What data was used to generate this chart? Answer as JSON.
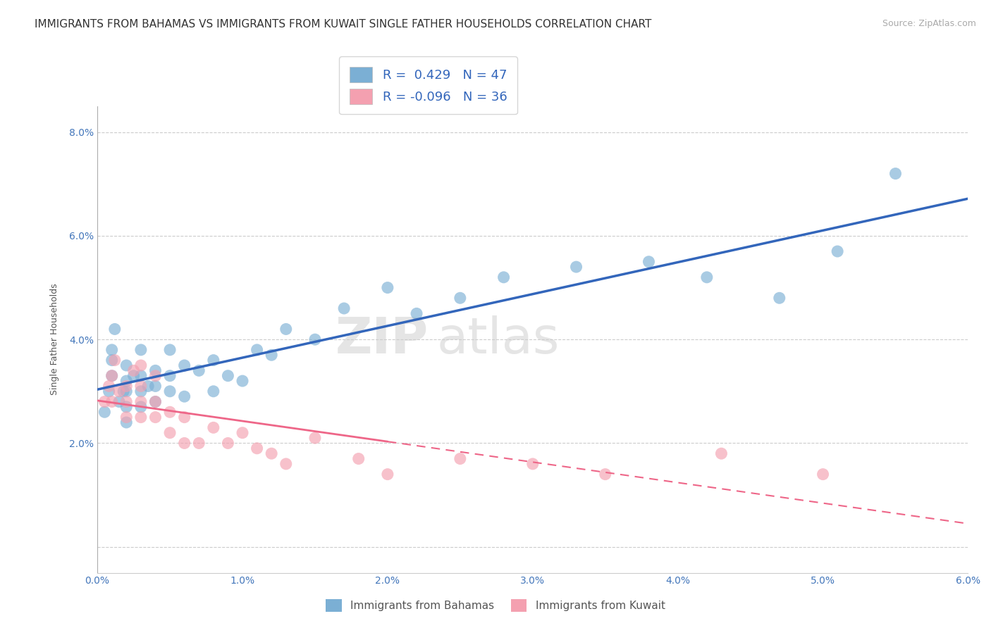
{
  "title": "IMMIGRANTS FROM BAHAMAS VS IMMIGRANTS FROM KUWAIT SINGLE FATHER HOUSEHOLDS CORRELATION CHART",
  "source": "Source: ZipAtlas.com",
  "ylabel": "Single Father Households",
  "xlabel": "",
  "legend_label1": "Immigrants from Bahamas",
  "legend_label2": "Immigrants from Kuwait",
  "r1": 0.429,
  "n1": 47,
  "r2": -0.096,
  "n2": 36,
  "color1": "#7BAFD4",
  "color2": "#F4A0B0",
  "line1_color": "#3366BB",
  "line2_color": "#EE6688",
  "xlim": [
    0.0,
    0.06
  ],
  "ylim": [
    -0.005,
    0.085
  ],
  "xticks": [
    0.0,
    0.01,
    0.02,
    0.03,
    0.04,
    0.05,
    0.06
  ],
  "yticks": [
    0.0,
    0.02,
    0.04,
    0.06,
    0.08
  ],
  "xtick_labels": [
    "0.0%",
    "1.0%",
    "2.0%",
    "3.0%",
    "4.0%",
    "5.0%",
    "6.0%"
  ],
  "ytick_labels": [
    "",
    "2.0%",
    "4.0%",
    "6.0%",
    "8.0%"
  ],
  "background_color": "#FFFFFF",
  "grid_color": "#CCCCCC",
  "watermark_zip": "ZIP",
  "watermark_atlas": "atlas",
  "bahamas_x": [
    0.0005,
    0.0008,
    0.001,
    0.001,
    0.001,
    0.0012,
    0.0015,
    0.0018,
    0.002,
    0.002,
    0.002,
    0.002,
    0.002,
    0.0025,
    0.003,
    0.003,
    0.003,
    0.003,
    0.0035,
    0.004,
    0.004,
    0.004,
    0.005,
    0.005,
    0.005,
    0.006,
    0.006,
    0.007,
    0.008,
    0.008,
    0.009,
    0.01,
    0.011,
    0.012,
    0.013,
    0.015,
    0.017,
    0.02,
    0.022,
    0.025,
    0.028,
    0.033,
    0.038,
    0.042,
    0.047,
    0.051,
    0.055
  ],
  "bahamas_y": [
    0.026,
    0.03,
    0.033,
    0.036,
    0.038,
    0.042,
    0.028,
    0.03,
    0.024,
    0.027,
    0.03,
    0.032,
    0.035,
    0.033,
    0.027,
    0.03,
    0.033,
    0.038,
    0.031,
    0.028,
    0.031,
    0.034,
    0.03,
    0.033,
    0.038,
    0.029,
    0.035,
    0.034,
    0.03,
    0.036,
    0.033,
    0.032,
    0.038,
    0.037,
    0.042,
    0.04,
    0.046,
    0.05,
    0.045,
    0.048,
    0.052,
    0.054,
    0.055,
    0.052,
    0.048,
    0.057,
    0.072
  ],
  "kuwait_x": [
    0.0005,
    0.0008,
    0.001,
    0.001,
    0.0012,
    0.0015,
    0.002,
    0.002,
    0.002,
    0.0025,
    0.003,
    0.003,
    0.003,
    0.003,
    0.004,
    0.004,
    0.004,
    0.005,
    0.005,
    0.006,
    0.006,
    0.007,
    0.008,
    0.009,
    0.01,
    0.011,
    0.012,
    0.013,
    0.015,
    0.018,
    0.02,
    0.025,
    0.03,
    0.035,
    0.043,
    0.05
  ],
  "kuwait_y": [
    0.028,
    0.031,
    0.028,
    0.033,
    0.036,
    0.03,
    0.025,
    0.028,
    0.031,
    0.034,
    0.025,
    0.028,
    0.031,
    0.035,
    0.025,
    0.028,
    0.033,
    0.022,
    0.026,
    0.02,
    0.025,
    0.02,
    0.023,
    0.02,
    0.022,
    0.019,
    0.018,
    0.016,
    0.021,
    0.017,
    0.014,
    0.017,
    0.016,
    0.014,
    0.018,
    0.014
  ],
  "title_fontsize": 11,
  "source_fontsize": 9,
  "axis_fontsize": 9,
  "tick_fontsize": 10
}
